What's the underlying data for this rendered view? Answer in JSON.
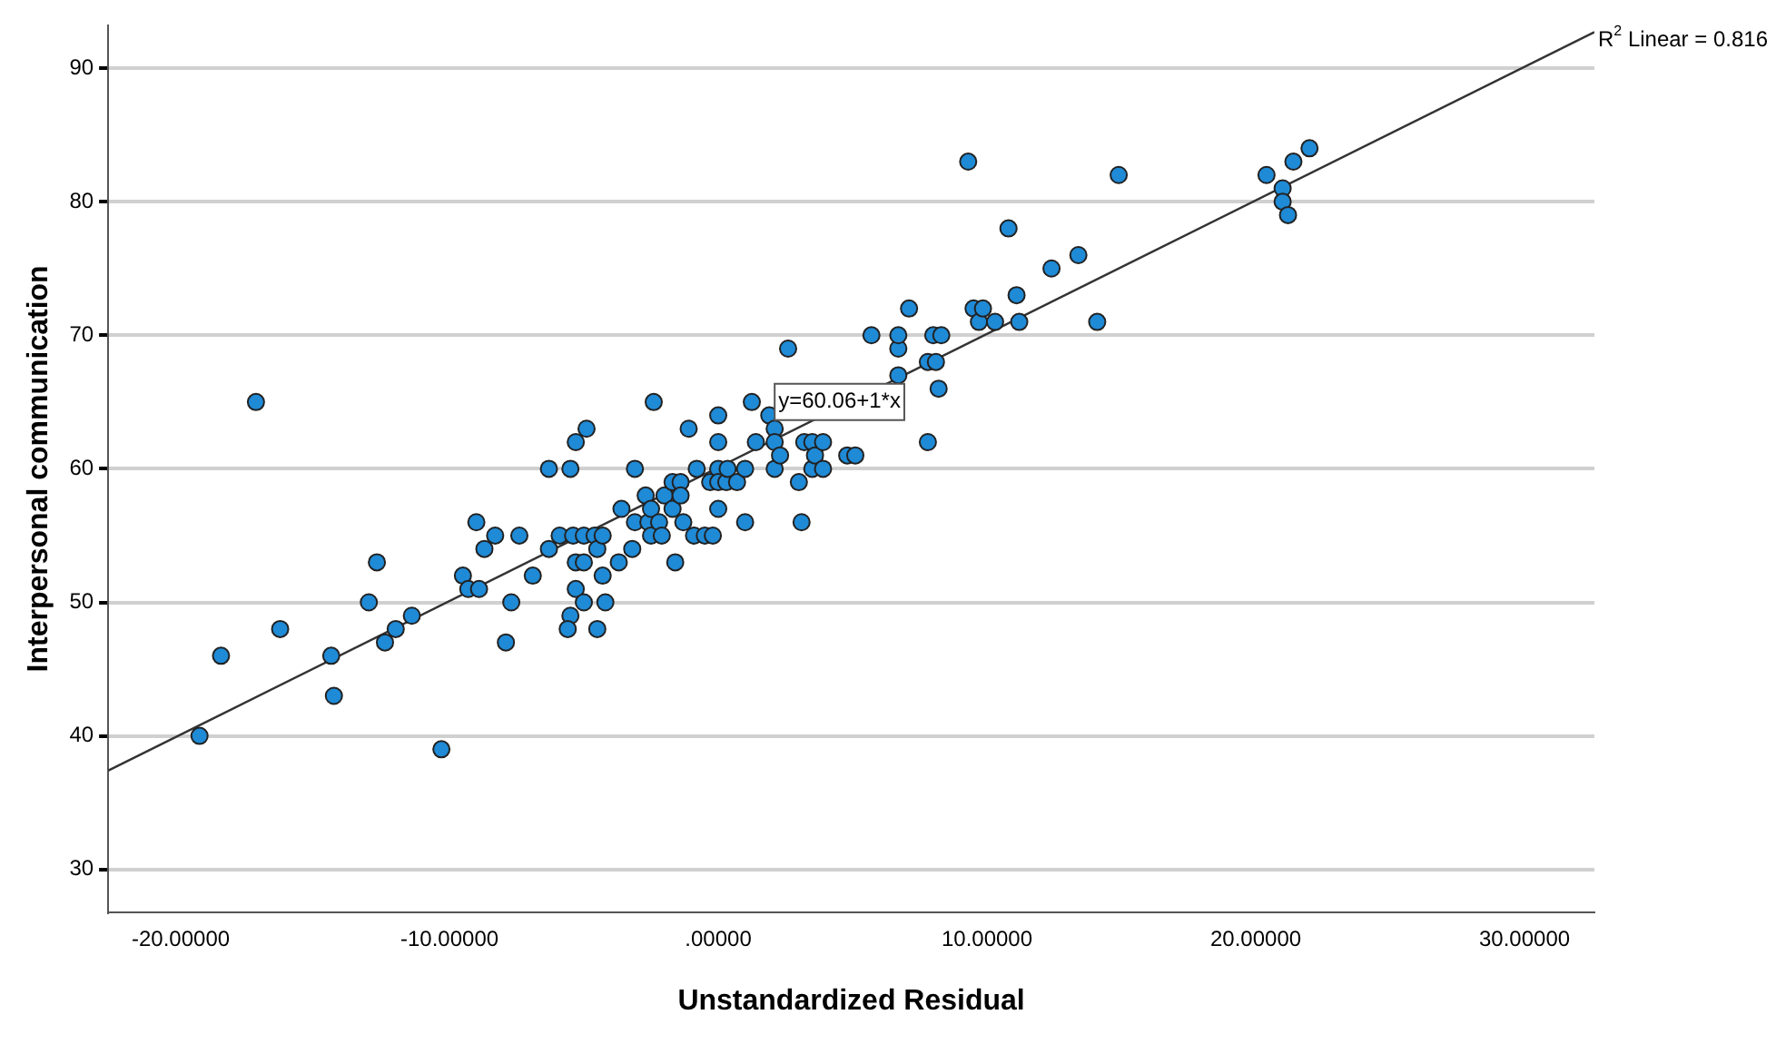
{
  "chart_data": {
    "type": "scatter",
    "xlabel": "Unstandardized Residual",
    "ylabel": "Interpersonal communication",
    "xlim": [
      -22.7,
      32.6
    ],
    "ylim": [
      26.8,
      93.2
    ],
    "xticks": [
      {
        "value": -20,
        "label": "-20.00000"
      },
      {
        "value": -10,
        "label": "-10.00000"
      },
      {
        "value": 0,
        "label": ".00000"
      },
      {
        "value": 10,
        "label": "10.00000"
      },
      {
        "value": 20,
        "label": "20.00000"
      },
      {
        "value": 30,
        "label": "30.00000"
      }
    ],
    "yticks": [
      30,
      40,
      50,
      60,
      70,
      80,
      90
    ],
    "grid": "y",
    "legend": false,
    "annotations": [
      {
        "text": "y=60.06+1*x",
        "x": 2.1,
        "y": 65
      },
      {
        "text": "R$^{2}$ Linear = 0.816",
        "x": 32.6,
        "y": 92.6
      }
    ],
    "series": [
      {
        "color": "#1f8ad6",
        "marker": "circle",
        "x": [
          -19.3,
          -18.5,
          -17.2,
          -16.3,
          -14.4,
          -14.3,
          -13.0,
          -12.7,
          -12.4,
          -12.0,
          -11.4,
          -10.3,
          -9.5,
          -9.3,
          -8.9,
          -9.0,
          -8.7,
          -8.3,
          -7.9,
          -7.7,
          -7.4,
          -6.9,
          -6.3,
          -6.3,
          -5.9,
          -5.5,
          -5.5,
          -5.6,
          -5.4,
          -5.3,
          -5.3,
          -5.3,
          -5.0,
          -5.0,
          -5.0,
          -4.9,
          -4.6,
          -4.5,
          -4.5,
          -4.3,
          -4.3,
          -4.2,
          -3.7,
          -3.6,
          -3.2,
          -3.1,
          -3.1,
          -2.7,
          -2.6,
          -2.5,
          -2.5,
          -2.4,
          -2.2,
          -2.1,
          -2.0,
          -1.7,
          -1.7,
          -1.6,
          -1.4,
          -1.4,
          -1.3,
          -1.1,
          -0.9,
          -0.8,
          -0.5,
          -0.3,
          -0.2,
          0,
          0,
          0,
          0,
          0,
          0.3,
          0.35,
          0.7,
          1.0,
          1.0,
          1.25,
          1.4,
          1.9,
          2.1,
          2.1,
          2.1,
          2.3,
          2.6,
          3.0,
          3.1,
          3.2,
          3.5,
          3.5,
          3.6,
          3.9,
          3.9,
          4.8,
          5.1,
          5.7,
          6.7,
          6.7,
          6.7,
          7.1,
          7.8,
          7.8,
          8.0,
          8.1,
          8.2,
          8.3,
          9.3,
          9.5,
          9.7,
          9.85,
          10.3,
          10.8,
          11.1,
          11.2,
          12.4,
          13.4,
          14.1,
          14.9,
          20.4,
          21.0,
          21.0,
          21.2,
          21.4,
          22.0
        ],
        "values": [
          40,
          46,
          65,
          48,
          46,
          43,
          50,
          53,
          47,
          48,
          49,
          39,
          52,
          51,
          51,
          56,
          54,
          55,
          47,
          50,
          55,
          52,
          60,
          54,
          55,
          60,
          49,
          48,
          55,
          62,
          53,
          51,
          55,
          53,
          50,
          63,
          55,
          54,
          48,
          55,
          52,
          50,
          53,
          57,
          54,
          60,
          56,
          58,
          56,
          57,
          55,
          65,
          56,
          55,
          58,
          59,
          57,
          53,
          59,
          58,
          56,
          63,
          55,
          60,
          55,
          59,
          55,
          64,
          62,
          60,
          59,
          57,
          59,
          60,
          59,
          60,
          56,
          65,
          62,
          64,
          63,
          62,
          60,
          61,
          69,
          59,
          56,
          62,
          62,
          60,
          61,
          62,
          60,
          61,
          61,
          70,
          69,
          70,
          67,
          72,
          68,
          62,
          70,
          68,
          66,
          70,
          83,
          72,
          71,
          72,
          71,
          78,
          73,
          71,
          75,
          76,
          71,
          82,
          82,
          81,
          80,
          79,
          83,
          84
        ]
      },
      {
        "type": "line",
        "color": "#333333",
        "marker": "none",
        "x": [
          -22.7,
          32.6
        ],
        "values": [
          37.4,
          92.7
        ]
      }
    ]
  }
}
